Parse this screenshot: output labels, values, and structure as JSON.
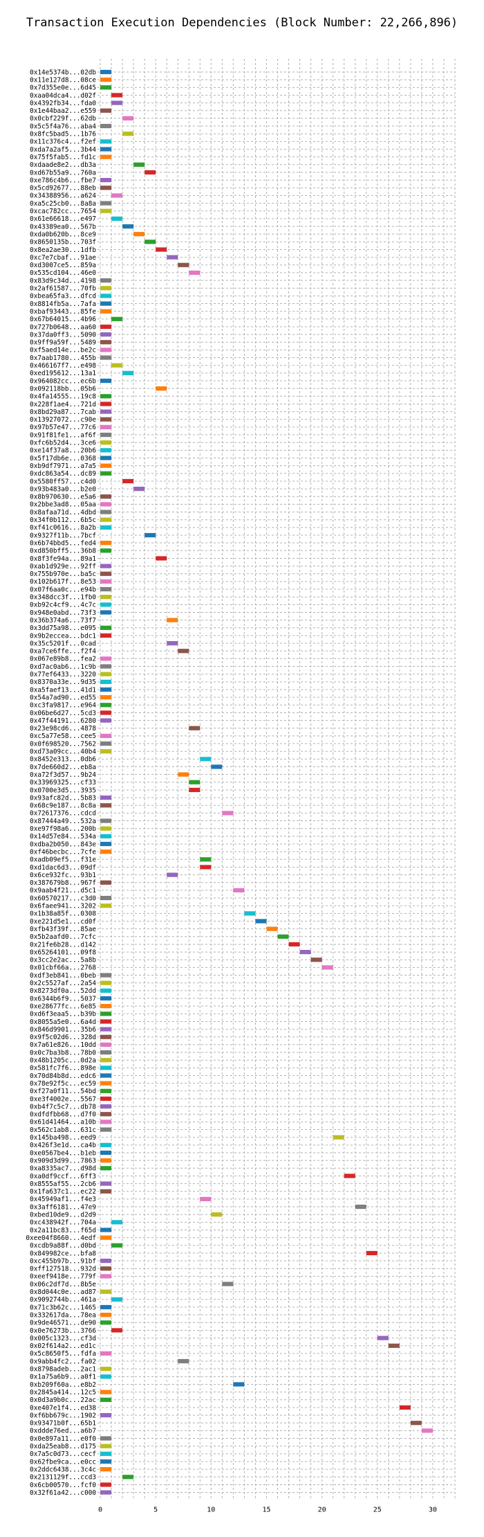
{
  "chart_data": {
    "type": "bar",
    "title": "Transaction Execution Dependencies (Block Number: 22,266,896)",
    "xlabel": "",
    "ylabel": "",
    "xlim": [
      0,
      32
    ],
    "xticks": [
      0,
      5,
      10,
      15,
      20,
      25,
      30
    ],
    "grid": true,
    "bar_width": 1,
    "colors": [
      "#1f77b4",
      "#ff7f0e",
      "#2ca02c",
      "#d62728",
      "#9467bd",
      "#8c564b",
      "#e377c2",
      "#7f7f7f",
      "#bcbd22",
      "#17becf"
    ],
    "transactions": [
      {
        "label": "0x14e5374b...02db",
        "start": 0
      },
      {
        "label": "0x11e127d8...08ce",
        "start": 0
      },
      {
        "label": "0x7d355e0e...6d45",
        "start": 0
      },
      {
        "label": "0xaa04dca4...d02f",
        "start": 1
      },
      {
        "label": "0x4392fb34...fda0",
        "start": 1
      },
      {
        "label": "0x1e44baa2...e559",
        "start": 0
      },
      {
        "label": "0x0cbf229f...62db",
        "start": 2
      },
      {
        "label": "0x5c5f4a76...aba4",
        "start": 0
      },
      {
        "label": "0x8fc5bad5...1b76",
        "start": 2
      },
      {
        "label": "0x11c376c4...f2ef",
        "start": 0
      },
      {
        "label": "0xda7a2af5...3b44",
        "start": 0
      },
      {
        "label": "0x75f5fab5...fd1c",
        "start": 0
      },
      {
        "label": "0xdaade8e2...db3a",
        "start": 3
      },
      {
        "label": "0xd67b55a9...760a",
        "start": 4
      },
      {
        "label": "0xe786c4b6...fbe7",
        "start": 0
      },
      {
        "label": "0x5cd92677...88eb",
        "start": 0
      },
      {
        "label": "0x34388956...a624",
        "start": 1
      },
      {
        "label": "0xa5c25cb0...8a8a",
        "start": 0
      },
      {
        "label": "0xcac782cc...7654",
        "start": 0
      },
      {
        "label": "0x61e66618...e497",
        "start": 1
      },
      {
        "label": "0x43389ea0...567b",
        "start": 2
      },
      {
        "label": "0xda0b620b...8ce9",
        "start": 3
      },
      {
        "label": "0x8650135b...703f",
        "start": 4
      },
      {
        "label": "0x8ea2ae30...1dfb",
        "start": 5
      },
      {
        "label": "0xc7e7cbaf...91ae",
        "start": 6
      },
      {
        "label": "0xd3007ce5...859a",
        "start": 7
      },
      {
        "label": "0x535cd104...46e0",
        "start": 8
      },
      {
        "label": "0x83d9c34d...4198",
        "start": 0
      },
      {
        "label": "0x2af61587...70fb",
        "start": 0
      },
      {
        "label": "0xbea65fa3...dfcd",
        "start": 0
      },
      {
        "label": "0x8814fb5a...7afa",
        "start": 0
      },
      {
        "label": "0xbaf93443...85fe",
        "start": 0
      },
      {
        "label": "0x67b64015...4b96",
        "start": 1
      },
      {
        "label": "0x727b0648...aa60",
        "start": 0
      },
      {
        "label": "0x37da0ff3...5090",
        "start": 0
      },
      {
        "label": "0x9ff9a59f...5489",
        "start": 0
      },
      {
        "label": "0xf5aed14e...be2c",
        "start": 0
      },
      {
        "label": "0x7aab1780...455b",
        "start": 0
      },
      {
        "label": "0x466167f7...e498",
        "start": 1
      },
      {
        "label": "0xed195612...13a1",
        "start": 2
      },
      {
        "label": "0x964082cc...ec6b",
        "start": 0
      },
      {
        "label": "0x092118bb...05b6",
        "start": 5
      },
      {
        "label": "0x4fa14555...19c8",
        "start": 0
      },
      {
        "label": "0x228f1ae4...721d",
        "start": 0
      },
      {
        "label": "0x8bd29a87...7cab",
        "start": 0
      },
      {
        "label": "0x13927072...c90e",
        "start": 0
      },
      {
        "label": "0x97b57e47...77c6",
        "start": 0
      },
      {
        "label": "0x91f81fe1...af6f",
        "start": 0
      },
      {
        "label": "0xfc6b52d4...3ce6",
        "start": 0
      },
      {
        "label": "0xe14f37a8...20b6",
        "start": 0
      },
      {
        "label": "0x5f17db6e...0368",
        "start": 0
      },
      {
        "label": "0xb9df7971...a7a5",
        "start": 0
      },
      {
        "label": "0xdc863a54...dc89",
        "start": 0
      },
      {
        "label": "0x5580ff57...c4d0",
        "start": 2
      },
      {
        "label": "0x93b483a0...b2e0",
        "start": 3
      },
      {
        "label": "0x8b970630...e5a6",
        "start": 0
      },
      {
        "label": "0x2bbe3ad8...05aa",
        "start": 0
      },
      {
        "label": "0x8afaa71d...4dbd",
        "start": 0
      },
      {
        "label": "0x34f0b112...6b5c",
        "start": 0
      },
      {
        "label": "0xf41c0616...8a2b",
        "start": 0
      },
      {
        "label": "0x9327f11b...7bcf",
        "start": 4
      },
      {
        "label": "0x6b74bbd5...fed4",
        "start": 0
      },
      {
        "label": "0xd850bff5...36b8",
        "start": 0
      },
      {
        "label": "0x8f3fe94a...89a1",
        "start": 5
      },
      {
        "label": "0xab1d929e...92ff",
        "start": 0
      },
      {
        "label": "0x755b970e...ba5c",
        "start": 0
      },
      {
        "label": "0x102b617f...8e53",
        "start": 0
      },
      {
        "label": "0x07f6aa0c...e94b",
        "start": 0
      },
      {
        "label": "0x348dcc3f...1fb0",
        "start": 0
      },
      {
        "label": "0xb92c4cf9...4c7c",
        "start": 0
      },
      {
        "label": "0x948e0abd...73f3",
        "start": 0
      },
      {
        "label": "0x36b374a6...73f7",
        "start": 6
      },
      {
        "label": "0x3dd75a98...e095",
        "start": 0
      },
      {
        "label": "0x9b2eccea...bdc1",
        "start": 0
      },
      {
        "label": "0x35c5201f...0cad",
        "start": 6
      },
      {
        "label": "0xa7ce6ffe...f2f4",
        "start": 7
      },
      {
        "label": "0x067e89b8...fea2",
        "start": 0
      },
      {
        "label": "0xd7ac0ab6...1c9b",
        "start": 0
      },
      {
        "label": "0x77ef6433...3220",
        "start": 0
      },
      {
        "label": "0x8370a33e...9d35",
        "start": 0
      },
      {
        "label": "0xa5faef13...41d1",
        "start": 0
      },
      {
        "label": "0x54a7ad90...ed55",
        "start": 0
      },
      {
        "label": "0xc3fa9817...e964",
        "start": 0
      },
      {
        "label": "0x06be6d27...5cd3",
        "start": 0
      },
      {
        "label": "0x47f44191...6280",
        "start": 0
      },
      {
        "label": "0x23e98cd6...4878",
        "start": 8
      },
      {
        "label": "0xc5a77e58...cee5",
        "start": 0
      },
      {
        "label": "0x0f698520...7562",
        "start": 0
      },
      {
        "label": "0xd73a09cc...40b4",
        "start": 0
      },
      {
        "label": "0x8452e313...0db6",
        "start": 9
      },
      {
        "label": "0x7de660d2...eb8a",
        "start": 10
      },
      {
        "label": "0xa72f3d57...9b24",
        "start": 7
      },
      {
        "label": "0x33969325...cf33",
        "start": 8
      },
      {
        "label": "0x0700e3d5...3935",
        "start": 8
      },
      {
        "label": "0x93afc82d...5b83",
        "start": 0
      },
      {
        "label": "0x68c9e187...8c8a",
        "start": 0
      },
      {
        "label": "0x72617376...cdcd",
        "start": 11
      },
      {
        "label": "0x87444a49...532a",
        "start": 0
      },
      {
        "label": "0xe97f98a6...200b",
        "start": 0
      },
      {
        "label": "0x14d57e84...534a",
        "start": 0
      },
      {
        "label": "0xdba2b050...843e",
        "start": 0
      },
      {
        "label": "0xf46becbc...7cfe",
        "start": 0
      },
      {
        "label": "0xadb09ef5...f31e",
        "start": 9
      },
      {
        "label": "0xd1dac6d3...09df",
        "start": 9
      },
      {
        "label": "0x6ce932fc...93b1",
        "start": 6
      },
      {
        "label": "0x387679b8...967f",
        "start": 0
      },
      {
        "label": "0x9aab4f21...d5c1",
        "start": 12
      },
      {
        "label": "0x60570217...c3d0",
        "start": 0
      },
      {
        "label": "0x6faee941...3202",
        "start": 0
      },
      {
        "label": "0x1b38a85f...0308",
        "start": 13
      },
      {
        "label": "0xe221d5e1...cd0f",
        "start": 14
      },
      {
        "label": "0xfb43f39f...85ae",
        "start": 15
      },
      {
        "label": "0x5b2aafd0...7cfc",
        "start": 16
      },
      {
        "label": "0x21fe6b28...d142",
        "start": 17
      },
      {
        "label": "0x65264101...09f8",
        "start": 18
      },
      {
        "label": "0x3cc2e2ac...5a8b",
        "start": 19
      },
      {
        "label": "0x01cbf66a...2768",
        "start": 20
      },
      {
        "label": "0xdf3eb841...0beb",
        "start": 0
      },
      {
        "label": "0x2c5527af...2a54",
        "start": 0
      },
      {
        "label": "0x8273df0a...52dd",
        "start": 0
      },
      {
        "label": "0x6344b6f9...5037",
        "start": 0
      },
      {
        "label": "0xe28677fc...6e85",
        "start": 0
      },
      {
        "label": "0xd6f3eaa5...b39b",
        "start": 0
      },
      {
        "label": "0x8055a5e0...6a4d",
        "start": 0
      },
      {
        "label": "0x846d9901...35b6",
        "start": 0
      },
      {
        "label": "0x9f5c02d6...328d",
        "start": 0
      },
      {
        "label": "0x7a61e826...10dd",
        "start": 0
      },
      {
        "label": "0x0c7ba3b8...78b0",
        "start": 0
      },
      {
        "label": "0x48b1205c...0d2a",
        "start": 0
      },
      {
        "label": "0x581fc7f6...898e",
        "start": 0
      },
      {
        "label": "0x70d84b8d...edc6",
        "start": 0
      },
      {
        "label": "0x78e92f5c...ec59",
        "start": 0
      },
      {
        "label": "0xf27a0f11...54bd",
        "start": 0
      },
      {
        "label": "0xe3f4002e...5567",
        "start": 0
      },
      {
        "label": "0xb4f7c5c7...db78",
        "start": 0
      },
      {
        "label": "0xdfdfbb68...d7f0",
        "start": 0
      },
      {
        "label": "0x61d41464...a10b",
        "start": 0
      },
      {
        "label": "0x562c1ab8...631c",
        "start": 0
      },
      {
        "label": "0x145ba498...eed9",
        "start": 21
      },
      {
        "label": "0x426f3e1d...ca4b",
        "start": 0
      },
      {
        "label": "0xe0567be4...b1eb",
        "start": 0
      },
      {
        "label": "0x909d3d99...7863",
        "start": 0
      },
      {
        "label": "0xa8335ac7...d98d",
        "start": 0
      },
      {
        "label": "0xa0df9ccf...6ff3",
        "start": 22
      },
      {
        "label": "0x8555af55...2cb6",
        "start": 0
      },
      {
        "label": "0x1fa637c1...ec22",
        "start": 0
      },
      {
        "label": "0x45949af1...f4e3",
        "start": 9
      },
      {
        "label": "0x3aff6181...47e9",
        "start": 23
      },
      {
        "label": "0xbed10de9...d2d9",
        "start": 10
      },
      {
        "label": "0xc438942f...704a",
        "start": 1
      },
      {
        "label": "0x2a11bc83...f65d",
        "start": 0
      },
      {
        "label": "0xee04f8660...4edf",
        "start": 0
      },
      {
        "label": "0xcdb9a88f...d0bd",
        "start": 1
      },
      {
        "label": "0x849982ce...bfa8",
        "start": 24
      },
      {
        "label": "0xc455b97b...91bf",
        "start": 0
      },
      {
        "label": "0xff127518...932d",
        "start": 0
      },
      {
        "label": "0xeef9418e...779f",
        "start": 0
      },
      {
        "label": "0x06c2df7d...8b5e",
        "start": 11
      },
      {
        "label": "0x8d044c0e...ad87",
        "start": 0
      },
      {
        "label": "0x9092744b...461a",
        "start": 1
      },
      {
        "label": "0x71c3b62c...1465",
        "start": 0
      },
      {
        "label": "0x332617da...78ea",
        "start": 0
      },
      {
        "label": "0x9de46571...de90",
        "start": 0
      },
      {
        "label": "0x0e76273b...3766",
        "start": 1
      },
      {
        "label": "0x005c1323...cf3d",
        "start": 25
      },
      {
        "label": "0x02f614a2...ed1c",
        "start": 26
      },
      {
        "label": "0x5c8650f5...fdfa",
        "start": 0
      },
      {
        "label": "0x9abb4fc2...fa02",
        "start": 7
      },
      {
        "label": "0x8798adeb...2ac1",
        "start": 0
      },
      {
        "label": "0x1a75a6b9...a0f1",
        "start": 0
      },
      {
        "label": "0xb209f60a...e8b2",
        "start": 12
      },
      {
        "label": "0x2845a414...12c5",
        "start": 0
      },
      {
        "label": "0x0d3a9b0c...22ac",
        "start": 0
      },
      {
        "label": "0xe407e1f4...ed38",
        "start": 27
      },
      {
        "label": "0xf6bb679c...1902",
        "start": 0
      },
      {
        "label": "0x93471b0f...65b1",
        "start": 28
      },
      {
        "label": "0xddde76ed...a6b7",
        "start": 29
      },
      {
        "label": "0x0e897a11...e0f0",
        "start": 0
      },
      {
        "label": "0xda25eab8...d175",
        "start": 0
      },
      {
        "label": "0x7a5c0d73...cecf",
        "start": 0
      },
      {
        "label": "0x62fbe9ca...e0cc",
        "start": 0
      },
      {
        "label": "0x2ddc6438...3c4c",
        "start": 0
      },
      {
        "label": "0x2131129f...ccd3",
        "start": 2
      },
      {
        "label": "0x6cb00570...fcf0",
        "start": 0
      },
      {
        "label": "0x32f61a42...c000",
        "start": 0
      }
    ]
  }
}
